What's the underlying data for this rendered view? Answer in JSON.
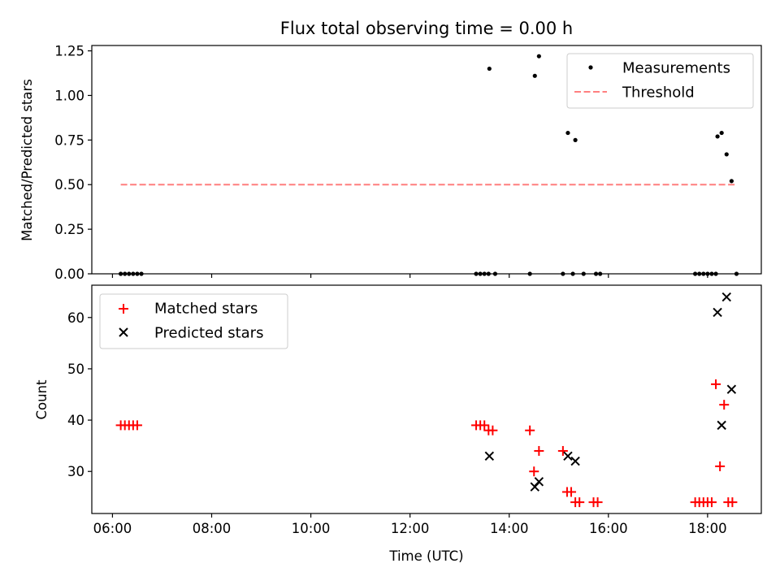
{
  "chart_data": [
    {
      "type": "scatter",
      "title": "Flux total observing time = 0.00 h",
      "xlabel": "",
      "ylabel": "Matched/Predicted stars",
      "xlim": [
        "05:35",
        "19:05"
      ],
      "ylim": [
        0,
        1.28
      ],
      "yticks": [
        0,
        0.25,
        0.5,
        0.75,
        1.0,
        1.25
      ],
      "ytick_labels": [
        "0.00",
        "0.25",
        "0.50",
        "0.75",
        "1.00",
        "1.25"
      ],
      "xtick_labels_shown": false,
      "grid": false,
      "legend_position": "upper right",
      "series": [
        {
          "name": "Measurements",
          "kind": "scatter",
          "marker": "dot",
          "color": "#000000",
          "points": [
            [
              "06:10",
              0
            ],
            [
              "06:15",
              0
            ],
            [
              "06:20",
              0
            ],
            [
              "06:25",
              0
            ],
            [
              "06:30",
              0
            ],
            [
              "06:35",
              0
            ],
            [
              "13:20",
              0
            ],
            [
              "13:25",
              0
            ],
            [
              "13:30",
              0
            ],
            [
              "13:35",
              0
            ],
            [
              "13:36",
              1.15
            ],
            [
              "13:43",
              0
            ],
            [
              "14:25",
              0
            ],
            [
              "14:31",
              1.11
            ],
            [
              "14:36",
              1.22
            ],
            [
              "15:05",
              0
            ],
            [
              "15:11",
              0.79
            ],
            [
              "15:17",
              0
            ],
            [
              "15:20",
              0.75
            ],
            [
              "15:30",
              0
            ],
            [
              "15:45",
              0
            ],
            [
              "15:50",
              0
            ],
            [
              "17:45",
              0
            ],
            [
              "17:50",
              0
            ],
            [
              "17:55",
              0
            ],
            [
              "18:00",
              0
            ],
            [
              "18:05",
              0
            ],
            [
              "18:10",
              0
            ],
            [
              "18:12",
              0.77
            ],
            [
              "18:17",
              0.79
            ],
            [
              "18:23",
              0.67
            ],
            [
              "18:29",
              0.52
            ],
            [
              "18:35",
              0
            ]
          ]
        },
        {
          "name": "Threshold",
          "kind": "line",
          "style": "dashed",
          "color": "#ff7f7f",
          "points": [
            [
              "06:10",
              0.5
            ],
            [
              "18:35",
              0.5
            ]
          ]
        }
      ]
    },
    {
      "type": "scatter",
      "title": "",
      "xlabel": "Time (UTC)",
      "ylabel": "Count",
      "xlim": [
        "05:35",
        "19:05"
      ],
      "ylim": [
        21.8,
        66.3
      ],
      "yticks": [
        30,
        40,
        50,
        60
      ],
      "ytick_labels": [
        "30",
        "40",
        "50",
        "60"
      ],
      "xticks": [
        "06:00",
        "08:00",
        "10:00",
        "12:00",
        "14:00",
        "16:00",
        "18:00"
      ],
      "xtick_labels": [
        "06:00",
        "08:00",
        "10:00",
        "12:00",
        "14:00",
        "16:00",
        "18:00"
      ],
      "grid": false,
      "legend_position": "upper left",
      "series": [
        {
          "name": "Matched stars",
          "marker": "plus",
          "color": "#ff0000",
          "points": [
            [
              "06:10",
              39
            ],
            [
              "06:15",
              39
            ],
            [
              "06:20",
              39
            ],
            [
              "06:25",
              39
            ],
            [
              "06:30",
              39
            ],
            [
              "13:20",
              39
            ],
            [
              "13:25",
              39
            ],
            [
              "13:30",
              39
            ],
            [
              "13:35",
              38
            ],
            [
              "13:40",
              38
            ],
            [
              "14:25",
              38
            ],
            [
              "14:30",
              30
            ],
            [
              "14:36",
              34
            ],
            [
              "15:05",
              34
            ],
            [
              "15:10",
              26
            ],
            [
              "15:15",
              26
            ],
            [
              "15:20",
              24
            ],
            [
              "15:25",
              24
            ],
            [
              "15:42",
              24
            ],
            [
              "15:47",
              24
            ],
            [
              "17:45",
              24
            ],
            [
              "17:50",
              24
            ],
            [
              "17:55",
              24
            ],
            [
              "18:00",
              24
            ],
            [
              "18:05",
              24
            ],
            [
              "18:10",
              47
            ],
            [
              "18:15",
              31
            ],
            [
              "18:20",
              43
            ],
            [
              "18:25",
              24
            ],
            [
              "18:30",
              24
            ]
          ]
        },
        {
          "name": "Predicted stars",
          "marker": "x",
          "color": "#000000",
          "points": [
            [
              "13:36",
              33
            ],
            [
              "14:31",
              27
            ],
            [
              "14:36",
              28
            ],
            [
              "15:11",
              33
            ],
            [
              "15:20",
              32
            ],
            [
              "18:12",
              61
            ],
            [
              "18:17",
              39
            ],
            [
              "18:23",
              64
            ],
            [
              "18:29",
              46
            ]
          ]
        }
      ]
    }
  ]
}
